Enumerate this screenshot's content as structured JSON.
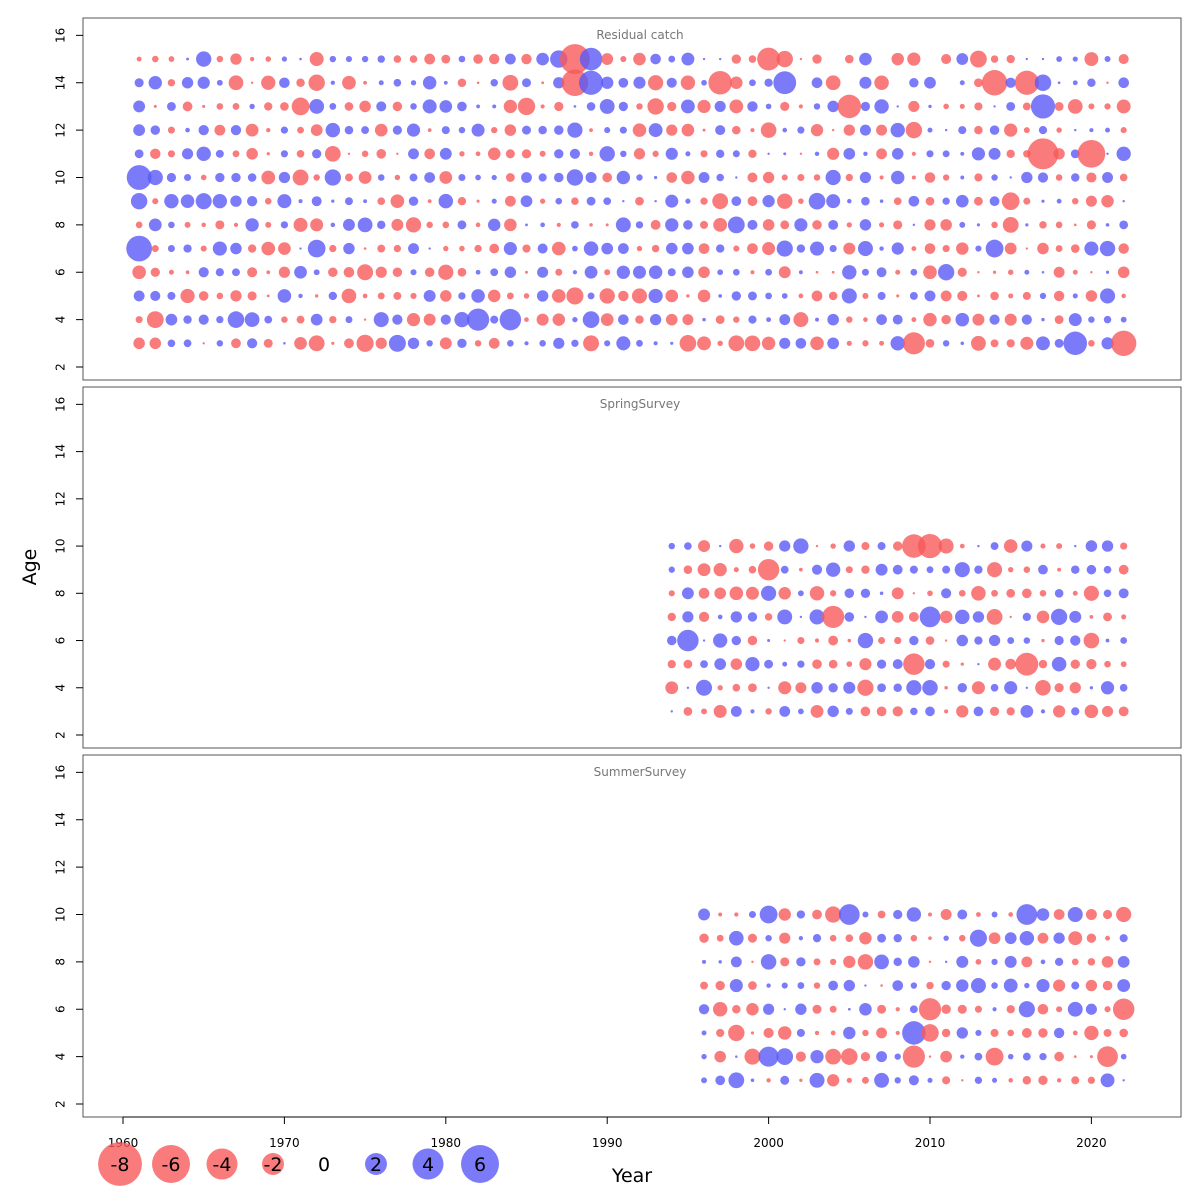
{
  "chart_data": {
    "type": "scatter",
    "subtype": "bubble",
    "title": "",
    "xlabel": "Year",
    "ylabel": "Age",
    "xlim": [
      1959,
      2025
    ],
    "ylim": [
      1.5,
      16.5
    ],
    "xticks": [
      1960,
      1970,
      1980,
      1990,
      2000,
      2010,
      2020
    ],
    "yticks": [
      2,
      4,
      6,
      8,
      10,
      12,
      14,
      16
    ],
    "colors": {
      "positive": "#5a5af7",
      "negative": "#f75a5a"
    },
    "legend": {
      "placement": "bottom-left",
      "values": [
        -8,
        -6,
        -4,
        -2,
        0,
        2,
        4,
        6
      ],
      "labels": [
        "-8",
        "-6",
        "-4",
        "-2",
        "0",
        "2",
        "4",
        "6"
      ]
    },
    "panels": [
      {
        "name": "Residual catch",
        "years": [
          1961,
          2022
        ],
        "ages": [
          3,
          15
        ],
        "highlights": [
          {
            "x": 1961,
            "y": 10,
            "value": 4.0
          },
          {
            "x": 1961,
            "y": 7,
            "value": 4.3
          },
          {
            "x": 1988,
            "y": 15,
            "value": -5.8
          },
          {
            "x": 1988,
            "y": 14,
            "value": -4.6
          },
          {
            "x": 1989,
            "y": 14,
            "value": 3.8
          },
          {
            "x": 1989,
            "y": 15,
            "value": 3.3
          },
          {
            "x": 1997,
            "y": 14,
            "value": -3.6
          },
          {
            "x": 2000,
            "y": 15,
            "value": -3.4
          },
          {
            "x": 2001,
            "y": 14,
            "value": 3.4
          },
          {
            "x": 2005,
            "y": 13,
            "value": -3.6
          },
          {
            "x": 2014,
            "y": 14,
            "value": -4.2
          },
          {
            "x": 2016,
            "y": 14,
            "value": -3.8
          },
          {
            "x": 2017,
            "y": 11,
            "value": -6.2
          },
          {
            "x": 2017,
            "y": 13,
            "value": 3.8
          },
          {
            "x": 2020,
            "y": 11,
            "value": -5.0
          },
          {
            "x": 2019,
            "y": 3,
            "value": 3.6
          },
          {
            "x": 2022,
            "y": 3,
            "value": -4.2
          },
          {
            "x": 2009,
            "y": 3,
            "value": -3.2
          },
          {
            "x": 1982,
            "y": 4,
            "value": 3.2
          },
          {
            "x": 1984,
            "y": 4,
            "value": 3.0
          }
        ]
      },
      {
        "name": "SpringSurvey",
        "years": [
          1994,
          2022
        ],
        "ages": [
          3,
          10
        ],
        "highlights": [
          {
            "x": 2009,
            "y": 10,
            "value": -3.6
          },
          {
            "x": 2010,
            "y": 10,
            "value": -3.8
          },
          {
            "x": 2000,
            "y": 9,
            "value": -3.0
          },
          {
            "x": 2004,
            "y": 7,
            "value": -3.2
          },
          {
            "x": 1995,
            "y": 6,
            "value": 3.0
          },
          {
            "x": 2016,
            "y": 5,
            "value": -3.4
          },
          {
            "x": 2009,
            "y": 5,
            "value": -3.0
          },
          {
            "x": 2010,
            "y": 7,
            "value": 2.8
          }
        ]
      },
      {
        "name": "SummerSurvey",
        "years": [
          1996,
          2022
        ],
        "ages": [
          3,
          10
        ],
        "highlights": [
          {
            "x": 2009,
            "y": 5,
            "value": 3.6
          },
          {
            "x": 2009,
            "y": 4,
            "value": -3.2
          },
          {
            "x": 2010,
            "y": 6,
            "value": -3.2
          },
          {
            "x": 2022,
            "y": 6,
            "value": -3.0
          },
          {
            "x": 2005,
            "y": 10,
            "value": 2.8
          },
          {
            "x": 2016,
            "y": 10,
            "value": 2.8
          },
          {
            "x": 2000,
            "y": 4,
            "value": 2.6
          },
          {
            "x": 2021,
            "y": 4,
            "value": -2.8
          }
        ]
      }
    ]
  }
}
